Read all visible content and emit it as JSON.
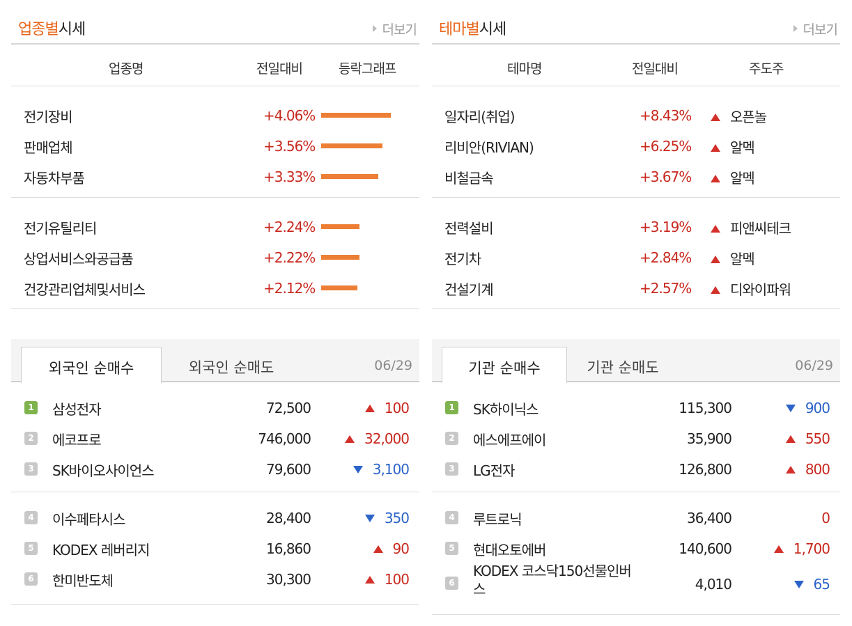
{
  "sector": {
    "title_highlight": "업종별",
    "title_rest": "시세",
    "more": "더보기",
    "cols": {
      "name": "업종명",
      "change": "전일대비",
      "graph": "등락그래프"
    },
    "rows": [
      {
        "name": "전기장비",
        "change": "+4.06%",
        "pct": 4.06
      },
      {
        "name": "판매업체",
        "change": "+3.56%",
        "pct": 3.56
      },
      {
        "name": "자동차부품",
        "change": "+3.33%",
        "pct": 3.33
      },
      {
        "name": "전기유틸리티",
        "change": "+2.24%",
        "pct": 2.24
      },
      {
        "name": "상업서비스와공급품",
        "change": "+2.22%",
        "pct": 2.22
      },
      {
        "name": "건강관리업체및서비스",
        "change": "+2.12%",
        "pct": 2.12
      }
    ]
  },
  "theme": {
    "title_highlight": "테마별",
    "title_rest": "시세",
    "more": "더보기",
    "cols": {
      "name": "테마명",
      "change": "전일대비",
      "leader": "주도주"
    },
    "rows": [
      {
        "name": "일자리(취업)",
        "change": "+8.43%",
        "leader": "오픈놀"
      },
      {
        "name": "리비안(RIVIAN)",
        "change": "+6.25%",
        "leader": "알멕"
      },
      {
        "name": "비철금속",
        "change": "+3.67%",
        "leader": "알멕"
      },
      {
        "name": "전력설비",
        "change": "+3.19%",
        "leader": "피앤씨테크"
      },
      {
        "name": "전기차",
        "change": "+2.84%",
        "leader": "알멕"
      },
      {
        "name": "건설기계",
        "change": "+2.57%",
        "leader": "디와이파워"
      }
    ]
  },
  "foreign": {
    "tab_buy": "외국인 순매수",
    "tab_sell": "외국인 순매도",
    "date": "06/29",
    "rows": [
      {
        "rank": "1",
        "name": "삼성전자",
        "price": "72,500",
        "diff": "100",
        "dir": "up"
      },
      {
        "rank": "2",
        "name": "에코프로",
        "price": "746,000",
        "diff": "32,000",
        "dir": "up"
      },
      {
        "rank": "3",
        "name": "SK바이오사이언스",
        "price": "79,600",
        "diff": "3,100",
        "dir": "down"
      },
      {
        "rank": "4",
        "name": "이수페타시스",
        "price": "28,400",
        "diff": "350",
        "dir": "down"
      },
      {
        "rank": "5",
        "name": "KODEX 레버리지",
        "price": "16,860",
        "diff": "90",
        "dir": "up"
      },
      {
        "rank": "6",
        "name": "한미반도체",
        "price": "30,300",
        "diff": "100",
        "dir": "up"
      }
    ]
  },
  "institution": {
    "tab_buy": "기관 순매수",
    "tab_sell": "기관 순매도",
    "date": "06/29",
    "rows": [
      {
        "rank": "1",
        "name": "SK하이닉스",
        "price": "115,300",
        "diff": "900",
        "dir": "down"
      },
      {
        "rank": "2",
        "name": "에스에프에이",
        "price": "35,900",
        "diff": "550",
        "dir": "up"
      },
      {
        "rank": "3",
        "name": "LG전자",
        "price": "126,800",
        "diff": "800",
        "dir": "up"
      },
      {
        "rank": "4",
        "name": "루트로닉",
        "price": "36,400",
        "diff": "0",
        "dir": "flat"
      },
      {
        "rank": "5",
        "name": "현대오토에버",
        "price": "140,600",
        "diff": "1,700",
        "dir": "up"
      },
      {
        "rank": "6",
        "name": "KODEX 코스닥150선물인버스",
        "name_line1": "KODEX 코스닥150선물인버",
        "name_line2": "스",
        "price": "4,010",
        "diff": "65",
        "dir": "down"
      }
    ]
  },
  "colors": {
    "accent": "#e8671c",
    "up": "#c8281e",
    "down": "#2b63c9",
    "bar": "#ec7f35"
  }
}
